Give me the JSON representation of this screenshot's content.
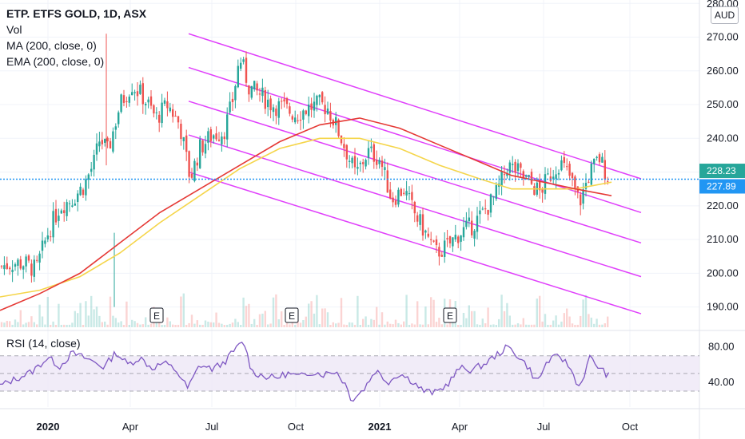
{
  "header": {
    "symbol_title": "ETP. ETFS GOLD, 1D, ASX",
    "indicators": [
      "Vol",
      "MA (200, close, 0)",
      "EMA (200, close, 0)"
    ],
    "rsi_label": "RSI (14, close)",
    "currency": "AUD"
  },
  "colors": {
    "up": "#26a69a",
    "down": "#ef5350",
    "ma": "#f5d54a",
    "ema": "#e53935",
    "channel": "#e040fb",
    "rsi": "#7e57c2",
    "rsi_band": "#ede7f6",
    "price_line": "#2196f3",
    "current_badge": "#26a69a",
    "ref_badge": "#2196f3"
  },
  "chart_data": {
    "type": "candlestick",
    "title": "ETP. ETFS GOLD, 1D, ASX",
    "y_axis": {
      "ticks": [
        190,
        200,
        210,
        220,
        230,
        240,
        250,
        260,
        270,
        280
      ],
      "unit": "AUD",
      "range": [
        184,
        281
      ],
      "top_clipped_label": "280.00"
    },
    "x_axis": {
      "ticks": [
        "2020",
        "Apr",
        "Jul",
        "Oct",
        "2021",
        "Apr",
        "Jul",
        "Oct"
      ],
      "bold": [
        "2020",
        "2021"
      ]
    },
    "price_labels": [
      {
        "value": 228.23,
        "text": "228.23",
        "role": "last"
      },
      {
        "value": 227.89,
        "text": "227.89",
        "role": "reference"
      }
    ],
    "reference_line": 227.89,
    "price_path": [
      [
        0,
        202
      ],
      [
        15,
        203
      ],
      [
        30,
        203
      ],
      [
        45,
        201
      ],
      [
        60,
        212
      ],
      [
        75,
        220
      ],
      [
        90,
        222
      ],
      [
        105,
        226
      ],
      [
        118,
        233
      ],
      [
        125,
        240
      ],
      [
        135,
        236
      ],
      [
        150,
        250
      ],
      [
        165,
        256
      ],
      [
        180,
        252
      ],
      [
        195,
        246
      ],
      [
        210,
        250
      ],
      [
        225,
        244
      ],
      [
        238,
        228
      ],
      [
        250,
        237
      ],
      [
        265,
        241
      ],
      [
        280,
        242
      ],
      [
        290,
        250
      ],
      [
        300,
        264
      ],
      [
        312,
        255
      ],
      [
        325,
        253
      ],
      [
        340,
        250
      ],
      [
        355,
        249
      ],
      [
        370,
        247
      ],
      [
        385,
        249
      ],
      [
        400,
        250
      ],
      [
        410,
        249
      ],
      [
        420,
        244
      ],
      [
        432,
        237
      ],
      [
        445,
        229
      ],
      [
        460,
        236
      ],
      [
        475,
        234
      ],
      [
        490,
        222
      ],
      [
        505,
        225
      ],
      [
        518,
        218
      ],
      [
        532,
        212
      ],
      [
        545,
        206
      ],
      [
        560,
        208
      ],
      [
        575,
        212
      ],
      [
        590,
        214
      ],
      [
        605,
        218
      ],
      [
        620,
        223
      ],
      [
        635,
        232
      ],
      [
        648,
        230
      ],
      [
        662,
        227
      ],
      [
        675,
        224
      ],
      [
        688,
        229
      ],
      [
        700,
        233
      ],
      [
        712,
        229
      ],
      [
        725,
        221
      ],
      [
        738,
        230
      ],
      [
        750,
        234
      ],
      [
        762,
        228
      ]
    ],
    "series": [
      {
        "name": "MA (200, close, 0)",
        "points": [
          [
            0,
            193
          ],
          [
            50,
            195
          ],
          [
            100,
            199
          ],
          [
            150,
            206
          ],
          [
            200,
            215
          ],
          [
            250,
            223
          ],
          [
            300,
            231
          ],
          [
            350,
            237
          ],
          [
            400,
            240
          ],
          [
            450,
            240
          ],
          [
            500,
            237
          ],
          [
            550,
            232
          ],
          [
            600,
            228
          ],
          [
            640,
            225
          ],
          [
            680,
            225
          ],
          [
            720,
            225
          ],
          [
            765,
            227
          ]
        ]
      },
      {
        "name": "EMA (200, close, 0)",
        "points": [
          [
            0,
            189
          ],
          [
            50,
            194
          ],
          [
            100,
            200
          ],
          [
            150,
            209
          ],
          [
            200,
            218
          ],
          [
            250,
            225
          ],
          [
            300,
            232
          ],
          [
            350,
            239
          ],
          [
            400,
            244
          ],
          [
            450,
            246
          ],
          [
            500,
            243
          ],
          [
            550,
            238
          ],
          [
            600,
            233
          ],
          [
            640,
            229
          ],
          [
            680,
            227
          ],
          [
            720,
            225
          ],
          [
            765,
            223
          ]
        ]
      }
    ],
    "channel_lines": [
      [
        [
          236,
          271
        ],
        [
          802,
          228
        ]
      ],
      [
        [
          236,
          261
        ],
        [
          802,
          218
        ]
      ],
      [
        [
          236,
          251
        ],
        [
          802,
          209
        ]
      ],
      [
        [
          236,
          241
        ],
        [
          802,
          199
        ]
      ],
      [
        [
          236,
          230
        ],
        [
          802,
          188
        ]
      ]
    ],
    "earnings_markers": [
      {
        "text": "E",
        "x": 196
      },
      {
        "text": "E",
        "x": 365
      },
      {
        "text": "E",
        "x": 563
      }
    ],
    "rsi": {
      "ticks": [
        40,
        80
      ],
      "overbought": 70,
      "middle": 50,
      "oversold": 30,
      "range": [
        12,
        95
      ],
      "points": [
        [
          0,
          36
        ],
        [
          20,
          44
        ],
        [
          40,
          52
        ],
        [
          60,
          68
        ],
        [
          75,
          58
        ],
        [
          90,
          73
        ],
        [
          105,
          68
        ],
        [
          118,
          63
        ],
        [
          130,
          57
        ],
        [
          145,
          74
        ],
        [
          160,
          60
        ],
        [
          175,
          68
        ],
        [
          190,
          56
        ],
        [
          205,
          62
        ],
        [
          220,
          54
        ],
        [
          235,
          33
        ],
        [
          250,
          60
        ],
        [
          265,
          55
        ],
        [
          280,
          62
        ],
        [
          295,
          78
        ],
        [
          305,
          86
        ],
        [
          315,
          52
        ],
        [
          330,
          47
        ],
        [
          345,
          45
        ],
        [
          360,
          50
        ],
        [
          375,
          46
        ],
        [
          390,
          52
        ],
        [
          405,
          49
        ],
        [
          420,
          53
        ],
        [
          432,
          38
        ],
        [
          440,
          20
        ],
        [
          455,
          32
        ],
        [
          470,
          54
        ],
        [
          485,
          40
        ],
        [
          500,
          50
        ],
        [
          515,
          42
        ],
        [
          530,
          30
        ],
        [
          545,
          28
        ],
        [
          560,
          38
        ],
        [
          575,
          56
        ],
        [
          590,
          54
        ],
        [
          605,
          60
        ],
        [
          620,
          70
        ],
        [
          635,
          80
        ],
        [
          648,
          70
        ],
        [
          660,
          58
        ],
        [
          672,
          40
        ],
        [
          685,
          64
        ],
        [
          700,
          70
        ],
        [
          712,
          58
        ],
        [
          725,
          34
        ],
        [
          738,
          68
        ],
        [
          750,
          56
        ],
        [
          762,
          47
        ]
      ]
    }
  }
}
